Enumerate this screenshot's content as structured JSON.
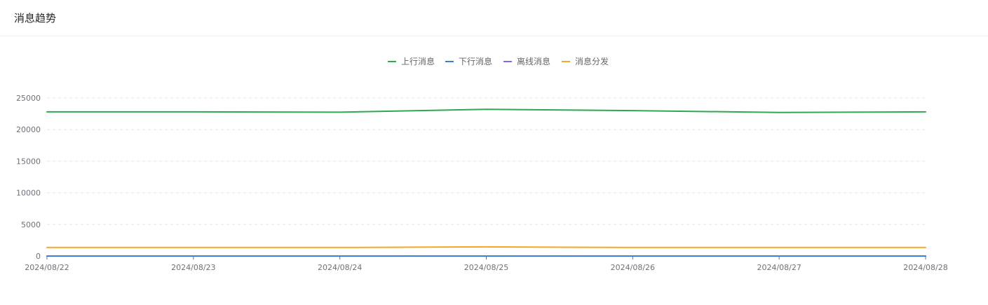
{
  "card": {
    "title": "消息趋势"
  },
  "chart_data": {
    "type": "line",
    "title": "",
    "xlabel": "",
    "ylabel": "",
    "x": [
      "2024/08/22",
      "2024/08/23",
      "2024/08/24",
      "2024/08/25",
      "2024/08/26",
      "2024/08/27",
      "2024/08/28"
    ],
    "yticks": [
      "0",
      "5000",
      "10000",
      "15000",
      "20000",
      "25000"
    ],
    "ylim": [
      0,
      25000
    ],
    "grid": true,
    "legend_position": "top-center",
    "series": [
      {
        "name": "上行消息",
        "color": "#2fa84f",
        "values": [
          22800,
          22800,
          22750,
          23200,
          23000,
          22700,
          22800
        ]
      },
      {
        "name": "下行消息",
        "color": "#3b7ddd",
        "values": [
          0,
          0,
          0,
          0,
          0,
          0,
          0
        ]
      },
      {
        "name": "离线消息",
        "color": "#7b6cf6",
        "values": [
          0,
          0,
          0,
          0,
          0,
          0,
          0
        ]
      },
      {
        "name": "消息分发",
        "color": "#f5a623",
        "values": [
          1350,
          1350,
          1350,
          1450,
          1350,
          1350,
          1350
        ]
      }
    ]
  }
}
